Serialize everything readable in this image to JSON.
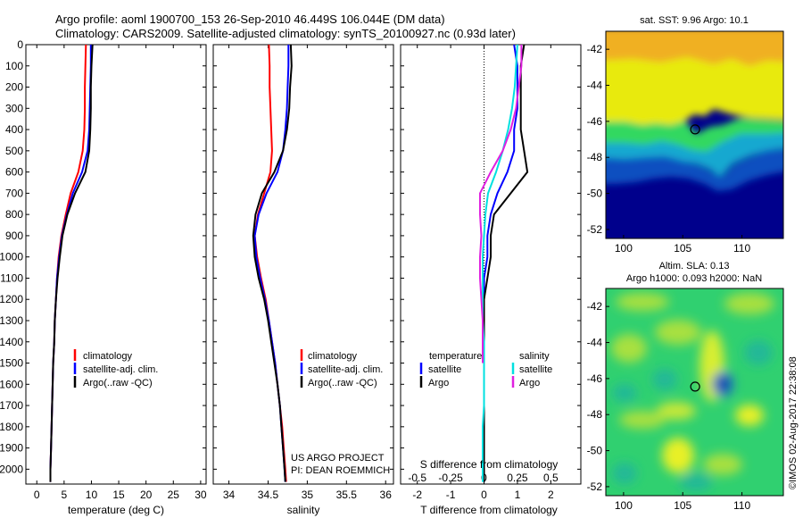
{
  "header": {
    "title_line1": "Argo profile: aoml 1900700_153 26-Sep-2010 46.449S 106.044E (DM data)",
    "title_line2": "Climatology: CARS2009. Satellite-adjusted climatology: synTS_20100927.nc (0.93d later)"
  },
  "colors": {
    "climatology": "#ff0000",
    "satellite": "#0000ff",
    "argo": "#000000",
    "sat_temp": "#0000ff",
    "sat_sal": "#00e0e0",
    "argo_sal": "#e020e0"
  },
  "chart_data": [
    {
      "type": "line",
      "name": "temperature-profile",
      "xlabel": "temperature (deg C)",
      "ylabel": "",
      "xlim": [
        -2,
        31
      ],
      "ylim": [
        2070,
        0
      ],
      "invert_y": true,
      "grid": false,
      "xticks": [
        0,
        5,
        10,
        15,
        20,
        25,
        30
      ],
      "yticks": [
        0,
        100,
        200,
        300,
        400,
        500,
        600,
        700,
        800,
        900,
        1000,
        1100,
        1200,
        1300,
        1400,
        1500,
        1600,
        1700,
        1800,
        1900,
        2000
      ],
      "legend": {
        "placement": "lower-center",
        "entries": [
          "climatology",
          "satellite-adj. clim.",
          "Argo(..raw -QC)"
        ]
      },
      "series": [
        {
          "name": "climatology",
          "color": "#ff0000",
          "points": [
            [
              9.0,
              0
            ],
            [
              8.9,
              100
            ],
            [
              8.8,
              200
            ],
            [
              8.8,
              300
            ],
            [
              8.7,
              400
            ],
            [
              8.4,
              500
            ],
            [
              7.6,
              600
            ],
            [
              6.2,
              700
            ],
            [
              5.3,
              800
            ],
            [
              4.5,
              900
            ],
            [
              4.0,
              1000
            ],
            [
              3.7,
              1100
            ],
            [
              3.5,
              1200
            ],
            [
              3.3,
              1300
            ],
            [
              3.2,
              1400
            ],
            [
              3.0,
              1500
            ],
            [
              2.9,
              1600
            ],
            [
              2.8,
              1700
            ],
            [
              2.7,
              1800
            ],
            [
              2.6,
              1900
            ],
            [
              2.5,
              2000
            ],
            [
              2.5,
              2060
            ]
          ]
        },
        {
          "name": "satellite-adj. clim.",
          "color": "#0000ff",
          "points": [
            [
              9.9,
              0
            ],
            [
              9.9,
              100
            ],
            [
              9.8,
              200
            ],
            [
              9.7,
              300
            ],
            [
              9.6,
              400
            ],
            [
              9.3,
              500
            ],
            [
              8.3,
              600
            ],
            [
              6.6,
              700
            ],
            [
              5.5,
              800
            ],
            [
              4.6,
              900
            ],
            [
              4.1,
              1000
            ],
            [
              3.7,
              1100
            ],
            [
              3.5,
              1200
            ],
            [
              3.3,
              1300
            ],
            [
              3.2,
              1400
            ],
            [
              3.0,
              1500
            ],
            [
              2.9,
              1600
            ],
            [
              2.8,
              1700
            ],
            [
              2.7,
              1800
            ],
            [
              2.6,
              1900
            ],
            [
              2.5,
              2000
            ],
            [
              2.5,
              2060
            ]
          ]
        },
        {
          "name": "Argo(..raw -QC)",
          "color": "#000000",
          "points": [
            [
              10.2,
              0
            ],
            [
              10.0,
              100
            ],
            [
              9.9,
              200
            ],
            [
              9.9,
              300
            ],
            [
              9.8,
              400
            ],
            [
              9.6,
              500
            ],
            [
              8.9,
              600
            ],
            [
              7.0,
              700
            ],
            [
              5.6,
              800
            ],
            [
              4.7,
              900
            ],
            [
              4.2,
              1000
            ],
            [
              3.8,
              1100
            ],
            [
              3.5,
              1200
            ],
            [
              3.3,
              1300
            ],
            [
              3.2,
              1400
            ],
            [
              3.0,
              1500
            ],
            [
              2.9,
              1600
            ],
            [
              2.8,
              1700
            ],
            [
              2.7,
              1800
            ],
            [
              2.6,
              1900
            ],
            [
              2.5,
              2000
            ],
            [
              2.5,
              2060
            ]
          ]
        }
      ]
    },
    {
      "type": "line",
      "name": "salinity-profile",
      "xlabel": "salinity",
      "ylabel": "",
      "xlim": [
        33.8,
        36.1
      ],
      "ylim": [
        2070,
        0
      ],
      "invert_y": true,
      "grid": false,
      "xticks": [
        34,
        34.5,
        35,
        35.5,
        36
      ],
      "legend": {
        "placement": "lower-center",
        "entries": [
          "climatology",
          "satellite-adj. clim.",
          "Argo(..raw -QC)"
        ]
      },
      "annotation_line1": "US ARGO PROJECT",
      "annotation_line2": "PI: DEAN ROEMMICH",
      "series": [
        {
          "name": "climatology",
          "color": "#ff0000",
          "points": [
            [
              34.51,
              0
            ],
            [
              34.52,
              100
            ],
            [
              34.52,
              200
            ],
            [
              34.53,
              300
            ],
            [
              34.54,
              400
            ],
            [
              34.55,
              500
            ],
            [
              34.53,
              600
            ],
            [
              34.45,
              700
            ],
            [
              34.37,
              800
            ],
            [
              34.33,
              900
            ],
            [
              34.36,
              1000
            ],
            [
              34.41,
              1100
            ],
            [
              34.47,
              1200
            ],
            [
              34.51,
              1300
            ],
            [
              34.55,
              1400
            ],
            [
              34.59,
              1500
            ],
            [
              34.62,
              1600
            ],
            [
              34.65,
              1700
            ],
            [
              34.68,
              1800
            ],
            [
              34.7,
              1900
            ],
            [
              34.72,
              2000
            ],
            [
              34.73,
              2060
            ]
          ]
        },
        {
          "name": "satellite-adj. clim.",
          "color": "#0000ff",
          "points": [
            [
              34.76,
              0
            ],
            [
              34.76,
              100
            ],
            [
              34.75,
              200
            ],
            [
              34.74,
              300
            ],
            [
              34.72,
              400
            ],
            [
              34.69,
              500
            ],
            [
              34.62,
              600
            ],
            [
              34.48,
              700
            ],
            [
              34.38,
              800
            ],
            [
              34.33,
              900
            ],
            [
              34.35,
              1000
            ],
            [
              34.4,
              1100
            ],
            [
              34.46,
              1200
            ],
            [
              34.51,
              1300
            ],
            [
              34.55,
              1400
            ],
            [
              34.59,
              1500
            ],
            [
              34.62,
              1600
            ],
            [
              34.65,
              1700
            ],
            [
              34.67,
              1800
            ],
            [
              34.69,
              1900
            ],
            [
              34.71,
              2000
            ],
            [
              34.72,
              2060
            ]
          ]
        },
        {
          "name": "Argo(..raw -QC)",
          "color": "#000000",
          "points": [
            [
              34.79,
              0
            ],
            [
              34.8,
              100
            ],
            [
              34.78,
              200
            ],
            [
              34.77,
              300
            ],
            [
              34.74,
              400
            ],
            [
              34.69,
              500
            ],
            [
              34.58,
              600
            ],
            [
              34.42,
              700
            ],
            [
              34.34,
              800
            ],
            [
              34.31,
              900
            ],
            [
              34.33,
              1000
            ],
            [
              34.38,
              1100
            ],
            [
              34.45,
              1200
            ],
            [
              34.5,
              1300
            ],
            [
              34.54,
              1400
            ],
            [
              34.58,
              1500
            ],
            [
              34.62,
              1600
            ],
            [
              34.65,
              1700
            ],
            [
              34.67,
              1800
            ],
            [
              34.69,
              1900
            ],
            [
              34.71,
              2000
            ],
            [
              34.72,
              2060
            ]
          ]
        }
      ]
    },
    {
      "type": "line",
      "name": "difference-profile",
      "xlabel": "T difference from climatology",
      "xlabel_top": "S difference from climatology",
      "ylabel": "",
      "xlim": [
        -2.5,
        2.9
      ],
      "ylim": [
        2070,
        0
      ],
      "invert_y": true,
      "grid": false,
      "xticks": [
        -2,
        -1,
        0,
        1,
        2
      ],
      "xticks_top": [
        -0.5,
        -0.25,
        0,
        0.25,
        0.5
      ],
      "zero_line": "dotted",
      "legend": {
        "placement": "lower-center",
        "temperature_heading": "temperature",
        "salinity_heading": "salinity",
        "entries": [
          "satellite",
          "Argo",
          "satellite",
          "Argo"
        ]
      },
      "series": [
        {
          "name": "temperature satellite",
          "color": "#0000ff",
          "points": [
            [
              0.9,
              0
            ],
            [
              1.0,
              100
            ],
            [
              1.0,
              200
            ],
            [
              1.0,
              300
            ],
            [
              0.9,
              400
            ],
            [
              0.9,
              500
            ],
            [
              0.7,
              600
            ],
            [
              0.4,
              700
            ],
            [
              0.2,
              800
            ],
            [
              0.1,
              900
            ],
            [
              0.1,
              1000
            ],
            [
              0,
              1100
            ],
            [
              0,
              1200
            ],
            [
              0,
              1300
            ],
            [
              0,
              1400
            ],
            [
              0,
              1500
            ],
            [
              0,
              1600
            ],
            [
              0,
              1700
            ],
            [
              0,
              1800
            ],
            [
              0,
              1900
            ],
            [
              0,
              2000
            ],
            [
              0,
              2060
            ]
          ]
        },
        {
          "name": "temperature Argo",
          "color": "#000000",
          "points": [
            [
              1.2,
              0
            ],
            [
              1.1,
              100
            ],
            [
              1.1,
              200
            ],
            [
              1.1,
              300
            ],
            [
              1.1,
              400
            ],
            [
              1.2,
              500
            ],
            [
              1.3,
              600
            ],
            [
              0.8,
              700
            ],
            [
              0.3,
              800
            ],
            [
              0.2,
              900
            ],
            [
              0.2,
              1000
            ],
            [
              0.1,
              1100
            ],
            [
              0,
              1200
            ],
            [
              0,
              1300
            ],
            [
              0,
              1400
            ],
            [
              0,
              1500
            ],
            [
              0,
              1600
            ],
            [
              0,
              1700
            ],
            [
              0,
              1800
            ],
            [
              0,
              1900
            ],
            [
              0,
              2000
            ],
            [
              0,
              2060
            ]
          ]
        },
        {
          "name": "salinity satellite",
          "color": "#00e0e0",
          "points": [
            [
              0.25,
              0
            ],
            [
              0.24,
              100
            ],
            [
              0.23,
              200
            ],
            [
              0.21,
              300
            ],
            [
              0.18,
              400
            ],
            [
              0.14,
              500
            ],
            [
              0.09,
              600
            ],
            [
              0.03,
              700
            ],
            [
              0.01,
              800
            ],
            [
              0,
              900
            ],
            [
              -0.01,
              1000
            ],
            [
              -0.01,
              1100
            ],
            [
              -0.01,
              1200
            ],
            [
              -0.01,
              1300
            ],
            [
              0,
              1400
            ],
            [
              0,
              1500
            ],
            [
              0,
              1600
            ],
            [
              0,
              1700
            ],
            [
              -0.01,
              1800
            ],
            [
              -0.01,
              1900
            ],
            [
              -0.01,
              2000
            ],
            [
              -0.01,
              2060
            ]
          ]
        },
        {
          "name": "salinity Argo",
          "color": "#e020e0",
          "points": [
            [
              0.28,
              0
            ],
            [
              0.28,
              100
            ],
            [
              0.26,
              200
            ],
            [
              0.24,
              300
            ],
            [
              0.2,
              400
            ],
            [
              0.14,
              500
            ],
            [
              0.05,
              600
            ],
            [
              -0.03,
              700
            ],
            [
              -0.03,
              800
            ],
            [
              -0.02,
              900
            ],
            [
              -0.03,
              1000
            ],
            [
              -0.03,
              1100
            ],
            [
              -0.02,
              1200
            ],
            [
              -0.01,
              1300
            ],
            [
              -0.01,
              1400
            ],
            [
              -0.01,
              1500
            ]
          ]
        }
      ]
    },
    {
      "type": "heatmap",
      "name": "sst-map",
      "title": "sat. SST: 9.96  Argo: 10.1",
      "xlim": [
        98.5,
        113.5
      ],
      "ylim": [
        -52.5,
        -41
      ],
      "xticks": [
        100,
        105,
        110
      ],
      "yticks": [
        -42,
        -44,
        -46,
        -48,
        -50,
        -52
      ],
      "marker": {
        "lon": 106.044,
        "lat": -46.449
      }
    },
    {
      "type": "heatmap",
      "name": "sla-map",
      "title_line1": "Altim. SLA: 0.13",
      "title_line2": "Argo h1000: 0.093  h2000: NaN",
      "xlim": [
        98.5,
        113.5
      ],
      "ylim": [
        -52.5,
        -41
      ],
      "xticks": [
        100,
        105,
        110
      ],
      "yticks": [
        -42,
        -44,
        -46,
        -48,
        -50,
        -52
      ],
      "marker": {
        "lon": 106.044,
        "lat": -46.449
      }
    }
  ],
  "credit": "©IMOS 02-Aug-2017 22:38:08"
}
